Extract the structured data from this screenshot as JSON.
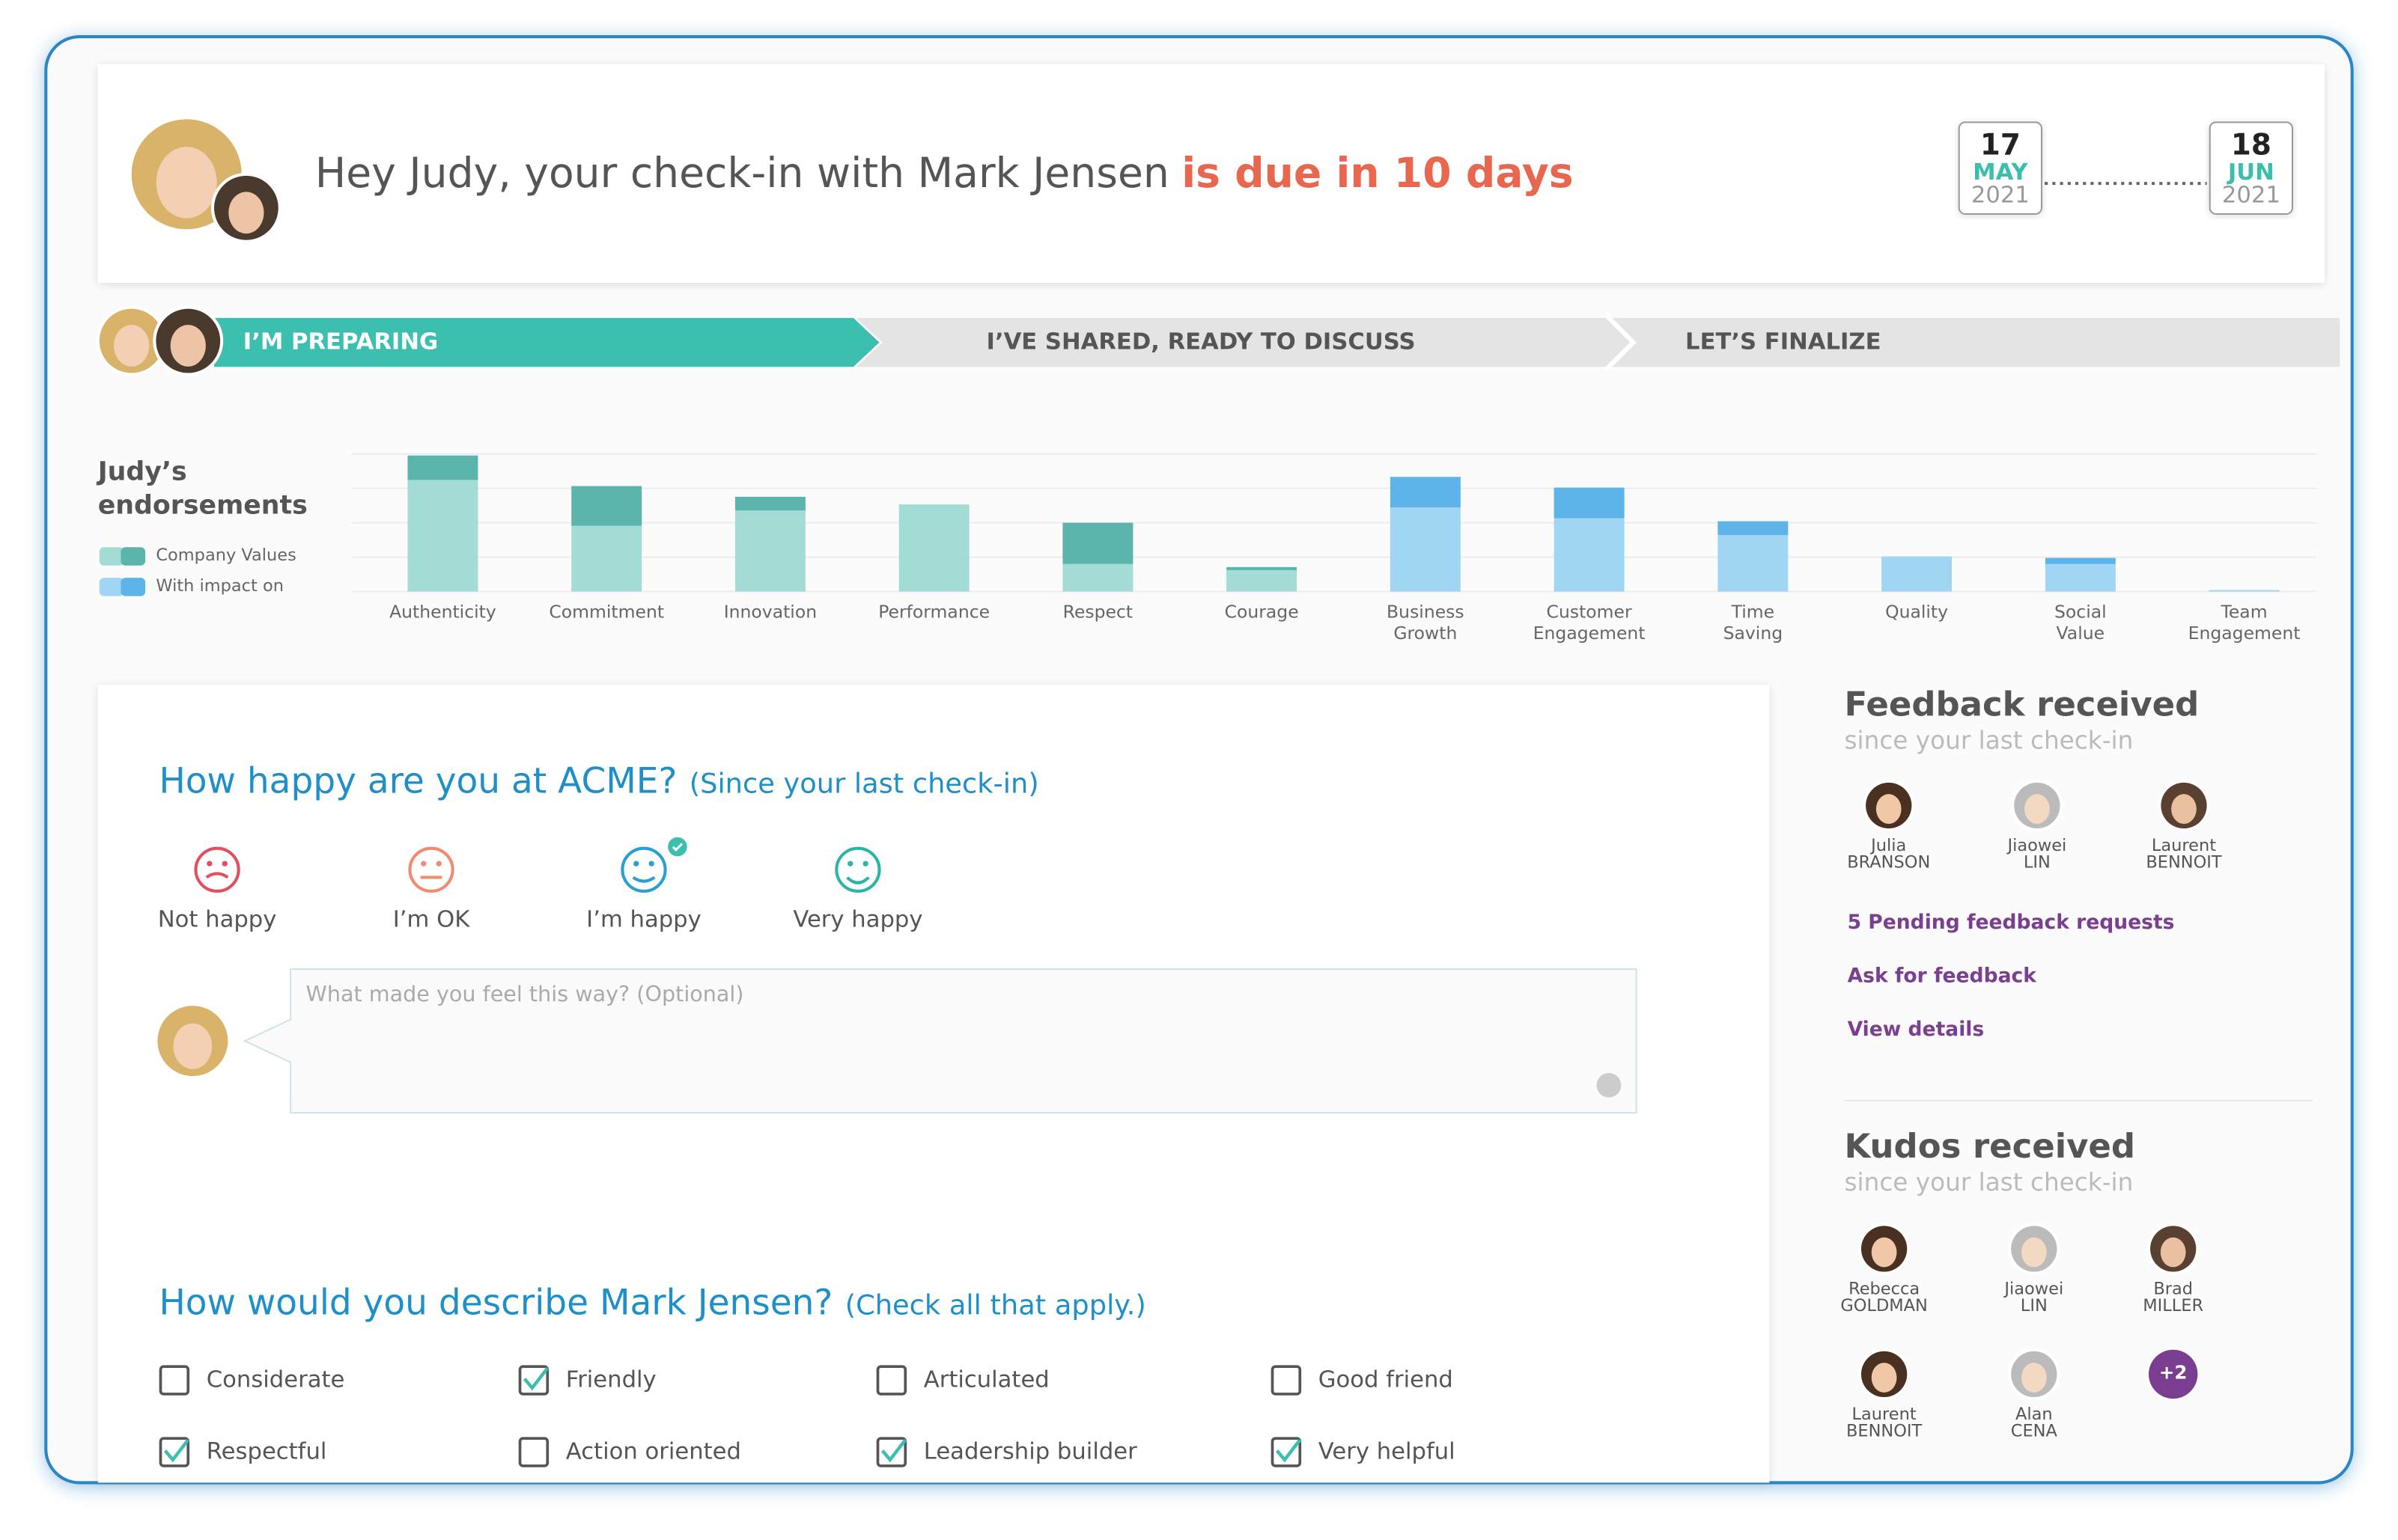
{
  "header": {
    "greeting": "Hey Judy, your check-in with Mark Jensen",
    "due": "is due in 10 days",
    "start": {
      "day": "17",
      "month": "MAY",
      "year": "2021"
    },
    "end": {
      "day": "18",
      "month": "JUN",
      "year": "2021"
    }
  },
  "steps": [
    "I’M PREPARING",
    "I’VE SHARED, READY TO DISCUSS",
    "LET’S FINALIZE"
  ],
  "endorsements": {
    "type": "bar",
    "title": "Judy’s endorsements",
    "legend": [
      {
        "label": "Company Values",
        "colors": [
          "#a3dcd5",
          "#5cb5ac"
        ]
      },
      {
        "label": "With impact on",
        "colors": [
          "#a0d5f4",
          "#5cb4e8"
        ]
      }
    ],
    "categories": [
      "Authenticity",
      "Commitment",
      "Innovation",
      "Performance",
      "Respect",
      "Courage",
      "Business\nGrowth",
      "Customer\nEngagement",
      "Time\nSaving",
      "Quality",
      "Social\nValue",
      "Team\nEngagement"
    ],
    "groups": [
      0,
      0,
      0,
      0,
      0,
      0,
      1,
      1,
      1,
      1,
      1,
      1
    ],
    "series": [
      {
        "values": [
          73,
          43,
          53,
          57,
          18,
          14,
          55,
          48,
          37,
          23,
          18,
          1
        ]
      },
      {
        "values": [
          16,
          26,
          9,
          0,
          27,
          2,
          20,
          20,
          9,
          0,
          4,
          0
        ]
      }
    ],
    "ylim": [
      0,
      90
    ],
    "grid": true
  },
  "happiness": {
    "question": "How happy are you at ACME?",
    "hint": "(Since your last check-in)",
    "options": [
      "Not happy",
      "I’m OK",
      "I’m happy",
      "Very happy"
    ],
    "colors": [
      "#e0505e",
      "#f08a72",
      "#2a9fd6",
      "#2ab5a5"
    ],
    "selected": 2,
    "placeholder": "What made you feel this way? (Optional)"
  },
  "describe": {
    "question": "How would you describe Mark Jensen?",
    "hint": "(Check all that apply.)",
    "options": [
      {
        "label": "Considerate",
        "checked": false
      },
      {
        "label": "Friendly",
        "checked": true
      },
      {
        "label": "Articulated",
        "checked": false
      },
      {
        "label": "Good friend",
        "checked": false
      },
      {
        "label": "Respectful",
        "checked": true
      },
      {
        "label": "Action oriented",
        "checked": false
      },
      {
        "label": "Leadership builder",
        "checked": true
      },
      {
        "label": "Very helpful",
        "checked": true
      }
    ]
  },
  "feedback": {
    "title": "Feedback received",
    "subtitle": "since your last check-in",
    "people": [
      {
        "first": "Julia",
        "last": "BRANSON"
      },
      {
        "first": "Jiaowei",
        "last": "LIN"
      },
      {
        "first": "Laurent",
        "last": "BENNOIT"
      }
    ],
    "links": [
      "5 Pending feedback requests",
      "Ask for feedback",
      "View details"
    ]
  },
  "kudos": {
    "title": "Kudos received",
    "subtitle": "since your last check-in",
    "people": [
      {
        "first": "Rebecca",
        "last": "GOLDMAN"
      },
      {
        "first": "Jiaowei",
        "last": "LIN"
      },
      {
        "first": "Brad",
        "last": "MILLER"
      },
      {
        "first": "Laurent",
        "last": "BENNOIT"
      },
      {
        "first": "Alan",
        "last": "CENA"
      }
    ],
    "more": "+2"
  }
}
